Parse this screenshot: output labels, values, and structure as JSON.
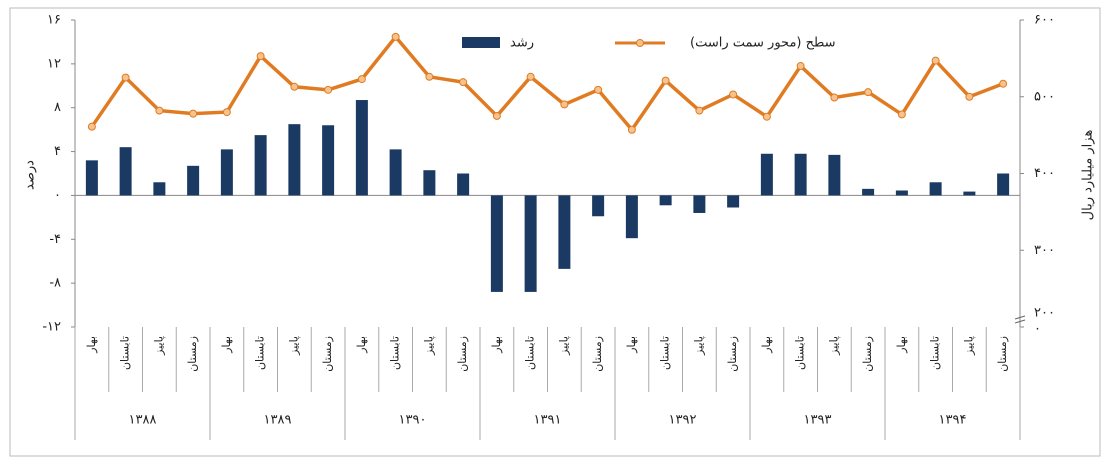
{
  "chart_data": {
    "type": "bar_line",
    "legend_bar": "رشد",
    "legend_line": "سطح (محور سمت راست)",
    "ylabel": "درصد",
    "y2label": "هزار میلیارد ریال",
    "categories": [
      "بهار",
      "تابستان",
      "پاییز",
      "زمستان",
      "بهار",
      "تابستان",
      "پاییز",
      "زمستان",
      "بهار",
      "تابستان",
      "پاییز",
      "زمستان",
      "بهار",
      "تابستان",
      "پاییز",
      "زمستان",
      "بهار",
      "تابستان",
      "پاییز",
      "زمستان",
      "بهار",
      "تابستان",
      "پاییز",
      "زمستان",
      "بهار",
      "تابستان",
      "پاییز",
      "زمستان"
    ],
    "groups": [
      {
        "label": "۱۳۸۸",
        "span": 4
      },
      {
        "label": "۱۳۸۹",
        "span": 4
      },
      {
        "label": "۱۳۹۰",
        "span": 4
      },
      {
        "label": "۱۳۹۱",
        "span": 4
      },
      {
        "label": "۱۳۹۲",
        "span": 4
      },
      {
        "label": "۱۳۹۳",
        "span": 4
      },
      {
        "label": "۱۳۹۴",
        "span": 4
      }
    ],
    "series": [
      {
        "name": "رشد",
        "color": "#1b3a63",
        "values": [
          3.2,
          4.4,
          1.2,
          2.7,
          4.2,
          5.5,
          6.5,
          6.4,
          8.7,
          4.2,
          2.3,
          2.0,
          -8.8,
          -8.8,
          -6.7,
          -1.9,
          -3.9,
          -0.9,
          -1.6,
          -1.1,
          3.8,
          3.8,
          3.7,
          0.6,
          0.45,
          1.2,
          0.35,
          2.0
        ]
      },
      {
        "name": "سطح (محور سمت راست)",
        "color": "#e07b22",
        "axis": "y2",
        "values": [
          461,
          525,
          482,
          478,
          480,
          553,
          513,
          509,
          523,
          578,
          526,
          519,
          475,
          526,
          490,
          509,
          457,
          521,
          482,
          503,
          474,
          540,
          499,
          506,
          477,
          547,
          500,
          517
        ]
      }
    ],
    "ylim": [
      -12,
      16
    ],
    "yticks": [
      {
        "value": 16,
        "label": "۱۶"
      },
      {
        "value": 12,
        "label": "۱۲"
      },
      {
        "value": 8,
        "label": "۸"
      },
      {
        "value": 4,
        "label": "۴"
      },
      {
        "value": 0,
        "label": "۰"
      },
      {
        "value": -4,
        "label": "-۴"
      },
      {
        "value": -8,
        "label": "-۸"
      },
      {
        "value": -12,
        "label": "-۱۲"
      }
    ],
    "y2lim": [
      200,
      600
    ],
    "y2ticks": [
      {
        "value": 600,
        "label": "۶۰۰"
      },
      {
        "value": 500,
        "label": "۵۰۰"
      },
      {
        "value": 400,
        "label": "۴۰۰"
      },
      {
        "value": 300,
        "label": "۳۰۰"
      },
      {
        "value": 200,
        "label": "۲۰۰"
      }
    ],
    "y2break_label": "۰"
  }
}
